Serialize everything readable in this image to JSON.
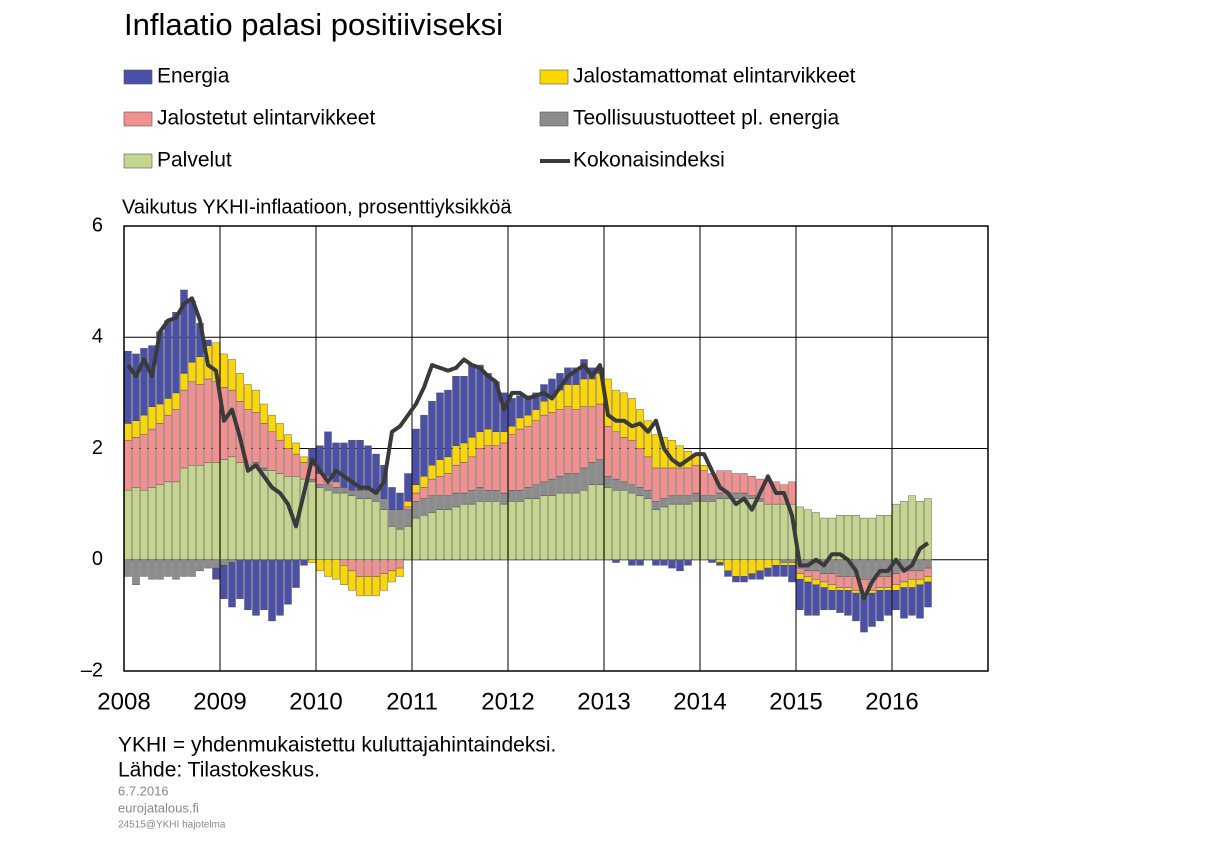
{
  "chart_data": {
    "type": "bar",
    "stacked": true,
    "title": "Inflaatio palasi positiiviseksi",
    "ylabel": "Vaikutus YKHI-inflaatioon, prosenttiyksikköä",
    "notes": [
      "YKHI = yhdenmukaistettu kuluttajahintaindeksi.",
      "Lähde: Tilastokeskus."
    ],
    "footer": [
      "6.7.2016",
      "eurojatalous.fi",
      "24515@YKHI hajotelma"
    ],
    "categories": [
      "2008",
      null,
      null,
      null,
      null,
      null,
      null,
      null,
      null,
      null,
      null,
      null,
      "2009",
      null,
      null,
      null,
      null,
      null,
      null,
      null,
      null,
      null,
      null,
      null,
      "2010",
      null,
      null,
      null,
      null,
      null,
      null,
      null,
      null,
      null,
      null,
      null,
      "2011",
      null,
      null,
      null,
      null,
      null,
      null,
      null,
      null,
      null,
      null,
      null,
      "2012",
      null,
      null,
      null,
      null,
      null,
      null,
      null,
      null,
      null,
      null,
      null,
      "2013",
      null,
      null,
      null,
      null,
      null,
      null,
      null,
      null,
      null,
      null,
      null,
      "2014",
      null,
      null,
      null,
      null,
      null,
      null,
      null,
      null,
      null,
      null,
      null,
      "2015",
      null,
      null,
      null,
      null,
      null,
      null,
      null,
      null,
      null,
      null,
      null,
      "2016",
      null,
      null,
      null,
      null,
      null,
      null,
      null,
      null,
      null,
      null,
      null
    ],
    "series": [
      {
        "name": "Energia",
        "color": "#4a50a8",
        "values": [
          1.3,
          1.2,
          1.2,
          1.1,
          1.3,
          1.4,
          1.45,
          1.5,
          1.1,
          0.6,
          0.1,
          -0.2,
          -0.6,
          -0.8,
          -0.7,
          -0.9,
          -1.0,
          -0.9,
          -1.1,
          -1.0,
          -0.8,
          -0.5,
          -0.1,
          0.3,
          0.5,
          0.8,
          0.7,
          0.8,
          0.9,
          0.9,
          0.8,
          0.7,
          0.6,
          0.4,
          0.3,
          0.5,
          1.0,
          1.1,
          1.15,
          1.2,
          1.2,
          1.25,
          1.2,
          1.3,
          1.2,
          1.0,
          0.9,
          0.7,
          0.5,
          0.4,
          0.35,
          0.3,
          0.3,
          0.3,
          0.3,
          0.3,
          0.3,
          0.35,
          0.2,
          0.1,
          0.0,
          -0.05,
          0.0,
          -0.1,
          -0.1,
          0.0,
          -0.1,
          -0.1,
          -0.15,
          -0.2,
          -0.1,
          0.0,
          0.0,
          -0.05,
          -0.05,
          -0.1,
          -0.1,
          -0.1,
          -0.1,
          -0.15,
          -0.15,
          -0.2,
          -0.2,
          -0.3,
          -0.55,
          -0.6,
          -0.55,
          -0.4,
          -0.35,
          -0.4,
          -0.45,
          -0.5,
          -0.65,
          -0.6,
          -0.55,
          -0.45,
          -0.35,
          -0.55,
          -0.5,
          -0.6,
          -0.45,
          null,
          null,
          null,
          null,
          null,
          null,
          null
        ]
      },
      {
        "name": "Jalostamattomat elintarvikkeet",
        "color": "#ffd700",
        "values": [
          0.3,
          0.3,
          0.35,
          0.4,
          0.35,
          0.3,
          0.3,
          0.3,
          0.35,
          0.5,
          0.6,
          0.7,
          0.6,
          0.55,
          0.5,
          0.45,
          0.4,
          0.35,
          0.3,
          0.3,
          0.25,
          0.2,
          0.1,
          -0.05,
          -0.2,
          -0.3,
          -0.35,
          -0.35,
          -0.35,
          -0.35,
          -0.35,
          -0.35,
          -0.3,
          -0.2,
          -0.15,
          0.1,
          0.15,
          0.2,
          0.25,
          0.3,
          0.3,
          0.35,
          0.35,
          0.35,
          0.3,
          0.3,
          0.25,
          0.2,
          0.15,
          0.2,
          0.2,
          0.2,
          0.25,
          0.3,
          0.35,
          0.4,
          0.45,
          0.5,
          0.5,
          0.55,
          0.85,
          0.75,
          0.8,
          0.75,
          0.7,
          0.65,
          0.6,
          0.55,
          0.5,
          0.4,
          0.3,
          0.2,
          0.1,
          0.0,
          -0.05,
          -0.2,
          -0.3,
          -0.3,
          -0.25,
          -0.2,
          -0.15,
          -0.1,
          -0.05,
          -0.05,
          -0.1,
          -0.1,
          -0.1,
          -0.1,
          -0.1,
          -0.05,
          -0.05,
          -0.05,
          -0.05,
          -0.05,
          -0.05,
          -0.05,
          -0.1,
          -0.1,
          -0.15,
          -0.1,
          -0.1,
          null,
          null,
          null,
          null,
          null,
          null,
          null
        ]
      },
      {
        "name": "Jalostetut elintarvikkeet",
        "color": "#f29090",
        "values": [
          0.9,
          0.9,
          1.0,
          1.05,
          1.1,
          1.2,
          1.3,
          1.4,
          1.5,
          1.45,
          1.5,
          1.45,
          1.3,
          1.2,
          1.1,
          1.0,
          0.9,
          0.8,
          0.7,
          0.6,
          0.5,
          0.4,
          0.3,
          0.25,
          0.2,
          0.15,
          0.1,
          -0.1,
          -0.2,
          -0.3,
          -0.3,
          -0.3,
          -0.25,
          -0.2,
          -0.15,
          0.05,
          0.15,
          0.2,
          0.3,
          0.35,
          0.4,
          0.5,
          0.55,
          0.6,
          0.7,
          0.8,
          0.8,
          0.9,
          1.0,
          1.1,
          1.1,
          1.15,
          1.2,
          1.2,
          1.2,
          1.2,
          1.15,
          1.1,
          1.0,
          1.0,
          0.9,
          0.85,
          0.8,
          0.8,
          0.7,
          0.6,
          0.6,
          0.55,
          0.5,
          0.5,
          0.5,
          0.5,
          0.45,
          0.4,
          0.4,
          0.4,
          0.35,
          0.35,
          0.35,
          0.35,
          0.4,
          0.4,
          0.35,
          0.4,
          -0.1,
          -0.1,
          -0.15,
          -0.15,
          -0.2,
          -0.2,
          -0.2,
          -0.25,
          -0.25,
          -0.2,
          -0.2,
          -0.2,
          -0.2,
          -0.2,
          -0.15,
          -0.15,
          -0.15,
          null,
          null,
          null,
          null,
          null,
          null,
          null
        ]
      },
      {
        "name": "Teollisuustuotteet pl. energia",
        "color": "#8c8c8c",
        "values": [
          -0.3,
          -0.45,
          -0.3,
          -0.35,
          -0.35,
          -0.3,
          -0.35,
          -0.3,
          -0.3,
          -0.2,
          -0.15,
          -0.15,
          -0.1,
          -0.05,
          0,
          0,
          0.05,
          0.05,
          0,
          0,
          0,
          0,
          0,
          0.05,
          0.05,
          0.1,
          0.1,
          0.1,
          0.1,
          0.15,
          0.15,
          0.15,
          0.2,
          0.3,
          0.35,
          0.3,
          0.3,
          0.3,
          0.3,
          0.25,
          0.25,
          0.25,
          0.2,
          0.25,
          0.25,
          0.2,
          0.2,
          0.2,
          0.2,
          0.2,
          0.2,
          0.25,
          0.25,
          0.3,
          0.3,
          0.35,
          0.35,
          0.4,
          0.4,
          0.45,
          0.2,
          0.2,
          0.15,
          0.15,
          0.15,
          0.15,
          0.15,
          0.15,
          0.15,
          0.15,
          0.15,
          0.15,
          0.1,
          0.1,
          0.1,
          0.1,
          0.1,
          0.1,
          0.05,
          0.05,
          0,
          0,
          -0.05,
          -0.05,
          -0.15,
          -0.2,
          -0.2,
          -0.25,
          -0.25,
          -0.3,
          -0.3,
          -0.3,
          -0.35,
          -0.35,
          -0.3,
          -0.3,
          -0.25,
          -0.2,
          -0.2,
          -0.2,
          -0.15,
          null,
          null,
          null,
          null,
          null,
          null,
          null
        ]
      },
      {
        "name": "Palvelut",
        "color": "#c4d68c",
        "values": [
          1.25,
          1.3,
          1.25,
          1.3,
          1.35,
          1.4,
          1.4,
          1.65,
          1.7,
          1.7,
          1.75,
          1.75,
          1.8,
          1.85,
          1.75,
          1.7,
          1.7,
          1.6,
          1.6,
          1.55,
          1.5,
          1.5,
          1.45,
          1.4,
          1.3,
          1.25,
          1.2,
          1.2,
          1.15,
          1.1,
          1.1,
          1.05,
          0.9,
          0.6,
          0.55,
          0.6,
          0.75,
          0.8,
          0.85,
          0.9,
          0.9,
          0.95,
          1.0,
          1.0,
          1.05,
          1.05,
          1.05,
          1.0,
          1.05,
          1.05,
          1.1,
          1.1,
          1.15,
          1.15,
          1.2,
          1.2,
          1.2,
          1.25,
          1.35,
          1.35,
          1.3,
          1.25,
          1.25,
          1.2,
          1.15,
          1.1,
          0.9,
          0.95,
          1.0,
          1.0,
          1.0,
          1.05,
          1.05,
          1.05,
          1.1,
          1.1,
          1.1,
          1.1,
          1.1,
          1.05,
          1.0,
          1.0,
          1.0,
          1.0,
          0.95,
          0.9,
          0.85,
          0.75,
          0.75,
          0.8,
          0.8,
          0.8,
          0.75,
          0.75,
          0.8,
          0.8,
          1.0,
          1.05,
          1.15,
          1.05,
          1.1,
          null,
          null,
          null,
          null,
          null,
          null,
          null
        ]
      },
      {
        "name": "Kokonaisindeksi",
        "color": "#3a3a3a",
        "type": "line",
        "values": [
          3.5,
          3.3,
          3.6,
          3.3,
          4.1,
          4.3,
          4.35,
          4.6,
          4.7,
          4.3,
          3.5,
          3.4,
          2.5,
          2.7,
          2.2,
          1.6,
          1.7,
          1.5,
          1.3,
          1.2,
          1.0,
          0.6,
          1.2,
          1.8,
          1.6,
          1.4,
          1.6,
          1.5,
          1.4,
          1.3,
          1.3,
          1.2,
          1.4,
          2.3,
          2.4,
          2.6,
          2.8,
          3.1,
          3.5,
          3.45,
          3.4,
          3.45,
          3.6,
          3.5,
          3.45,
          3.3,
          3.2,
          2.7,
          3.0,
          3.0,
          2.9,
          2.95,
          3.0,
          2.9,
          3.1,
          3.3,
          3.4,
          3.5,
          3.3,
          3.5,
          2.6,
          2.5,
          2.5,
          2.4,
          2.45,
          2.3,
          2.5,
          2.0,
          1.8,
          1.7,
          1.8,
          1.9,
          1.9,
          1.6,
          1.3,
          1.2,
          1.0,
          1.1,
          0.9,
          1.2,
          1.5,
          1.2,
          1.2,
          0.8,
          -0.1,
          -0.1,
          0.0,
          -0.1,
          0.1,
          0.1,
          0.0,
          -0.2,
          -0.7,
          -0.4,
          -0.2,
          -0.2,
          0.0,
          -0.2,
          -0.1,
          0.2,
          0.3,
          null,
          null,
          null,
          null,
          null,
          null,
          null
        ]
      }
    ],
    "ylim": [
      -2,
      6
    ],
    "yticks": [
      {
        "value": -2,
        "label": "–2"
      },
      0,
      2,
      4,
      6
    ],
    "grid": true
  }
}
